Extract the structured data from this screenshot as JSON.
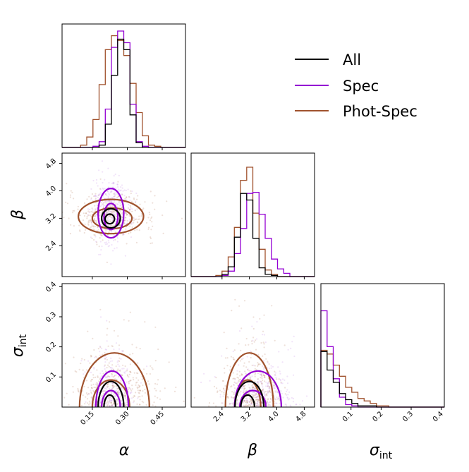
{
  "chart_data": {
    "type": "corner",
    "series": [
      {
        "name": "All",
        "color": "#000000"
      },
      {
        "name": "Spec",
        "color": "#9400d3"
      },
      {
        "name": "Phot-Spec",
        "color": "#a0522d"
      }
    ],
    "params": [
      {
        "label": "α",
        "base": "",
        "sub": "",
        "range": [
          0.02,
          0.55
        ],
        "ticks": [
          "0.15",
          "0.30",
          "0.45"
        ],
        "tickvals": [
          0.15,
          0.3,
          0.45
        ]
      },
      {
        "label": "β",
        "base": "",
        "sub": "",
        "range": [
          1.5,
          5.1
        ],
        "ticks": [
          "2.4",
          "3.2",
          "4.0",
          "4.8"
        ],
        "tickvals": [
          2.4,
          3.2,
          4.0,
          4.8
        ]
      },
      {
        "label": "",
        "base": "σ",
        "sub": "int",
        "range": [
          0.0,
          0.41
        ],
        "ticks": [
          "0.1",
          "0.2",
          "0.3",
          "0.4"
        ],
        "tickvals": [
          0.1,
          0.2,
          0.3,
          0.4
        ]
      }
    ],
    "ylabels": [
      {
        "label": "β",
        "base": "",
        "sub": ""
      },
      {
        "label": "",
        "base": "σ",
        "sub": "int"
      }
    ],
    "yticks": {
      "beta": [
        "2.4",
        "3.2",
        "4.0",
        "4.8"
      ],
      "sigma": [
        "0.1",
        "0.2",
        "0.3",
        "0.4"
      ]
    },
    "hist_alpha": {
      "All": [
        0,
        0,
        0,
        0,
        0,
        0,
        0.02,
        0.2,
        0.62,
        0.93,
        0.84,
        0.28,
        0.04,
        0,
        0,
        0,
        0,
        0,
        0,
        0
      ],
      "Spec": [
        0,
        0,
        0,
        0,
        0,
        0.01,
        0.05,
        0.33,
        0.86,
        1.0,
        0.9,
        0.37,
        0.05,
        0.01,
        0,
        0,
        0,
        0,
        0,
        0
      ],
      "Phot-Spec": [
        0,
        0,
        0,
        0.02,
        0.09,
        0.24,
        0.54,
        0.84,
        0.96,
        0.92,
        0.79,
        0.55,
        0.3,
        0.1,
        0.02,
        0.01,
        0,
        0,
        0,
        0
      ]
    },
    "hist_beta": {
      "All": [
        0,
        0,
        0,
        0,
        0,
        0.02,
        0.09,
        0.36,
        0.76,
        0.7,
        0.35,
        0.08,
        0.02,
        0.01,
        0,
        0,
        0,
        0,
        0,
        0
      ],
      "Spec": [
        0,
        0,
        0,
        0,
        0,
        0.01,
        0.05,
        0.21,
        0.44,
        0.76,
        0.77,
        0.57,
        0.35,
        0.16,
        0.07,
        0.03,
        0,
        0,
        0,
        0
      ],
      "Phot-Spec": [
        0,
        0,
        0,
        0,
        0.01,
        0.05,
        0.18,
        0.45,
        0.88,
        1.0,
        0.58,
        0.25,
        0.06,
        0.02,
        0,
        0,
        0,
        0,
        0,
        0
      ]
    },
    "hist_sigma": {
      "All": [
        0.45,
        0.3,
        0.2,
        0.11,
        0.06,
        0.03,
        0.01,
        0.01,
        0.01,
        0,
        0,
        0,
        0,
        0,
        0,
        0,
        0,
        0,
        0,
        0
      ],
      "Spec": [
        0.78,
        0.49,
        0.23,
        0.08,
        0.02,
        0.01,
        0,
        0,
        0,
        0,
        0,
        0,
        0,
        0,
        0,
        0,
        0,
        0,
        0,
        0
      ],
      "Phot-Spec": [
        0.46,
        0.43,
        0.34,
        0.25,
        0.16,
        0.12,
        0.07,
        0.05,
        0.03,
        0.01,
        0.01,
        0,
        0,
        0,
        0,
        0,
        0,
        0,
        0,
        0
      ]
    },
    "contours_alpha_beta": {
      "Spec": [
        {
          "c": [
            0.23,
            3.35
          ],
          "r": [
            0.055,
            0.72
          ]
        },
        {
          "c": [
            0.23,
            3.25
          ],
          "r": [
            0.03,
            0.38
          ]
        }
      ],
      "Phot-Spec": [
        {
          "c": [
            0.23,
            3.25
          ],
          "r": [
            0.14,
            0.5
          ]
        },
        {
          "c": [
            0.235,
            3.2
          ],
          "r": [
            0.085,
            0.3
          ]
        }
      ],
      "All": [
        {
          "c": [
            0.23,
            3.2
          ],
          "r": [
            0.04,
            0.28
          ]
        },
        {
          "c": [
            0.225,
            3.18
          ],
          "r": [
            0.02,
            0.14
          ]
        }
      ]
    },
    "contours_alpha_sigma": {
      "Phot-Spec": [
        {
          "c": [
            0.245,
            0
          ],
          "r": [
            0.15,
            0.18
          ]
        },
        {
          "c": [
            0.23,
            0
          ],
          "r": [
            0.08,
            0.09
          ]
        }
      ],
      "Spec": [
        {
          "c": [
            0.235,
            0
          ],
          "r": [
            0.07,
            0.12
          ]
        },
        {
          "c": [
            0.23,
            0
          ],
          "r": [
            0.04,
            0.055
          ]
        }
      ],
      "All": [
        {
          "c": [
            0.23,
            0
          ],
          "r": [
            0.055,
            0.085
          ]
        },
        {
          "c": [
            0.225,
            0
          ],
          "r": [
            0.025,
            0.04
          ]
        }
      ]
    },
    "contours_beta_sigma": {
      "Phot-Spec": [
        {
          "c": [
            3.2,
            0
          ],
          "r": [
            0.7,
            0.18
          ]
        },
        {
          "c": [
            3.15,
            0
          ],
          "r": [
            0.38,
            0.09
          ]
        }
      ],
      "Spec": [
        {
          "c": [
            3.45,
            0
          ],
          "r": [
            0.68,
            0.12
          ]
        },
        {
          "c": [
            3.3,
            0
          ],
          "r": [
            0.38,
            0.055
          ]
        }
      ],
      "All": [
        {
          "c": [
            3.2,
            0
          ],
          "r": [
            0.42,
            0.085
          ]
        },
        {
          "c": [
            3.15,
            0
          ],
          "r": [
            0.2,
            0.04
          ]
        }
      ]
    }
  }
}
